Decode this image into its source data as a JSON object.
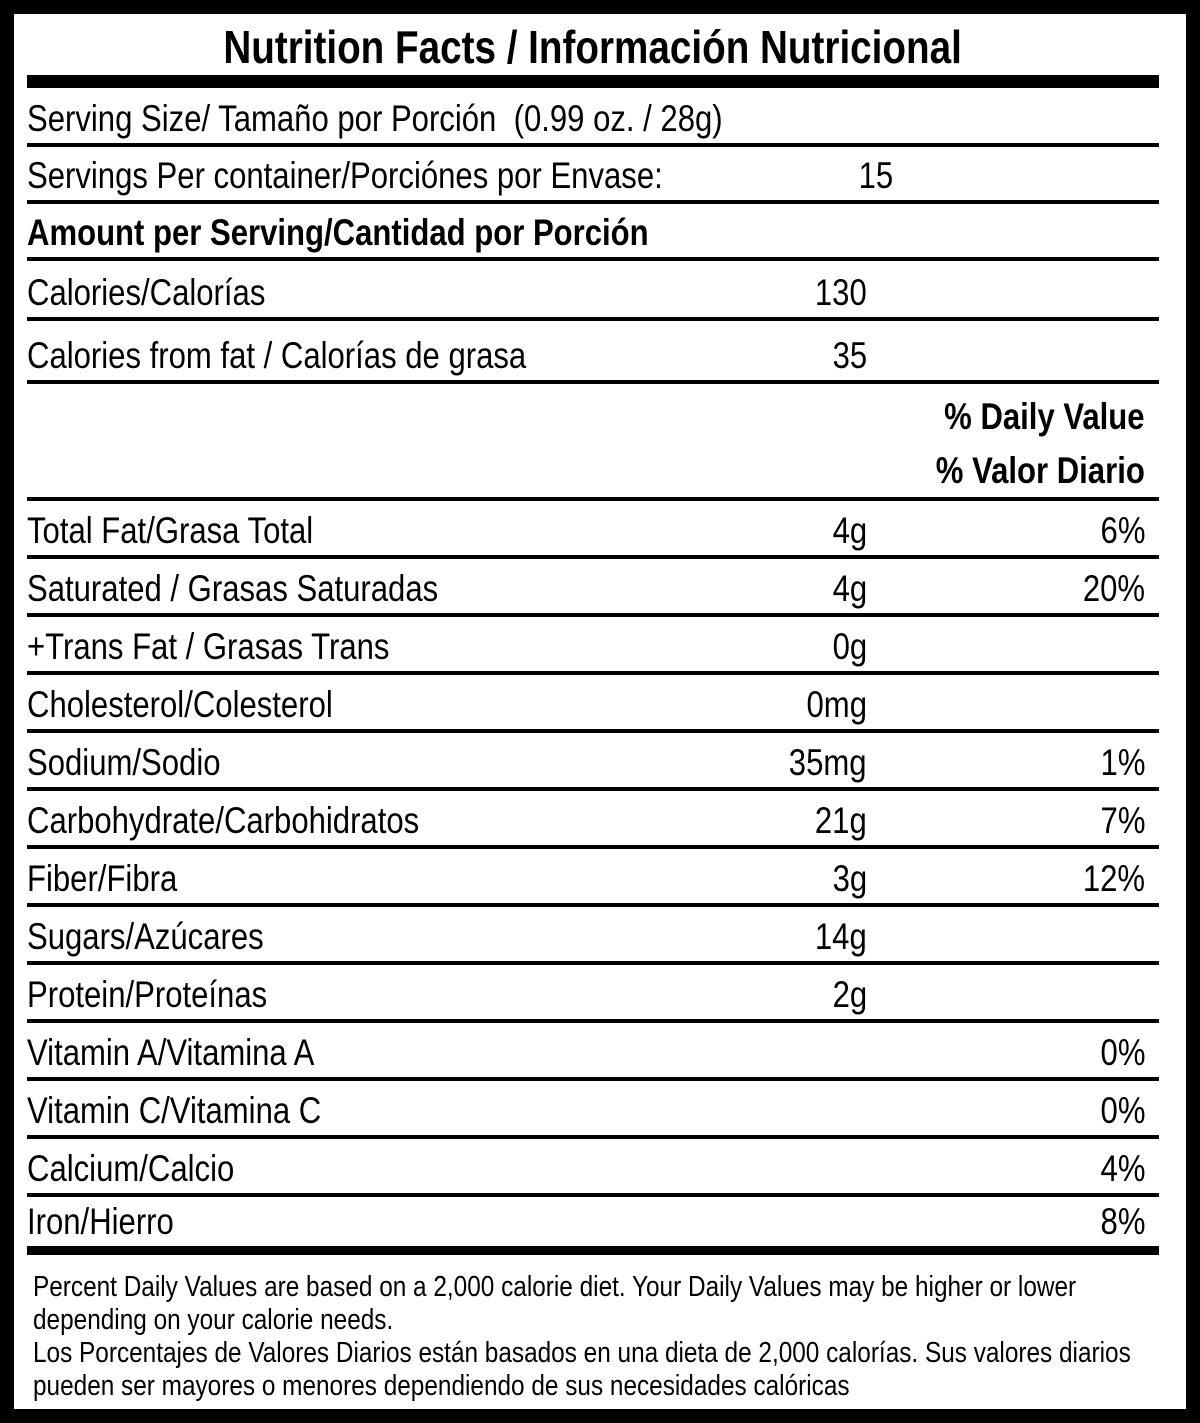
{
  "label": {
    "title": "Nutrition Facts / Información Nutricional",
    "serving_size": "Serving Size/ Tamaño por Porción  (0.99 oz. / 28g)",
    "servings_per_container": {
      "label": "Servings Per container/Porciónes por Envase:",
      "value": "15"
    },
    "amount_per_serving": "Amount per Serving/Cantidad por Porción",
    "calories": {
      "label": "Calories/Calorías",
      "value": "130"
    },
    "calories_from_fat": {
      "label": "Calories from fat / Calorías de grasa",
      "value": "35"
    },
    "daily_value_header": {
      "line1": "% Daily Value",
      "line2": "% Valor Diario"
    },
    "nutrients": [
      {
        "label": "Total Fat/Grasa Total",
        "amount": "4g",
        "dv": "6%"
      },
      {
        "label": "Saturated / Grasas Saturadas",
        "amount": "4g",
        "dv": "20%"
      },
      {
        "label": "+Trans Fat / Grasas Trans",
        "amount": "0g",
        "dv": ""
      },
      {
        "label": "Cholesterol/Colesterol",
        "amount": "0mg",
        "dv": ""
      },
      {
        "label": "Sodium/Sodio",
        "amount": "35mg",
        "dv": "1%"
      },
      {
        "label": "Carbohydrate/Carbohidratos",
        "amount": "21g",
        "dv": "7%"
      },
      {
        "label": "Fiber/Fibra",
        "amount": "3g",
        "dv": "12%"
      },
      {
        "label": "Sugars/Azúcares",
        "amount": "14g",
        "dv": ""
      },
      {
        "label": "Protein/Proteínas",
        "amount": "2g",
        "dv": ""
      },
      {
        "label": "Vitamin A/Vitamina A",
        "amount": "",
        "dv": "0%"
      },
      {
        "label": "Vitamin C/Vitamina C",
        "amount": "",
        "dv": "0%"
      },
      {
        "label": "Calcium/Calcio",
        "amount": "",
        "dv": "4%"
      },
      {
        "label": "Iron/Hierro",
        "amount": "",
        "dv": "8%"
      }
    ],
    "footnote_en": "Percent Daily Values are based on a 2,000 calorie diet. Your Daily Values may be higher or lower depending on your calorie needs.",
    "footnote_es": "Los Porcentajes de Valores Diarios están basados en una dieta de 2,000 calorías. Sus valores diarios pueden ser mayores o menores dependiendo de sus necesidades calóricas",
    "colors": {
      "text": "#000000",
      "background": "#ffffff"
    }
  }
}
